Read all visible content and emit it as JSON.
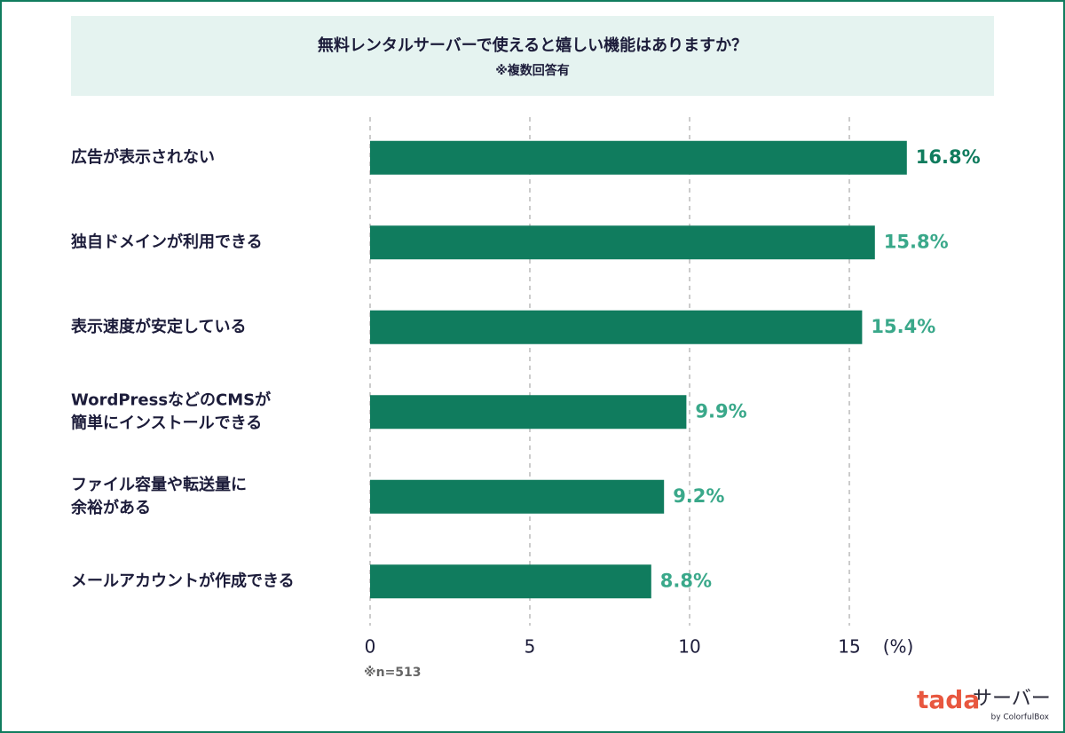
{
  "chart_data": {
    "type": "barh",
    "title": "無料レンタルサーバーで使えると嬉しい機能はありますか？",
    "subtitle": "※複数回答有",
    "categories": [
      "広告が表示されない",
      "独自ドメインが利用できる",
      "表示速度が安定している",
      "WordPressなどのCMSが\n簡単にインストールできる",
      "ファイル容量や転送量に\n余裕がある",
      "メールアカウントが作成できる"
    ],
    "values": [
      16.8,
      15.8,
      15.4,
      9.9,
      9.2,
      8.8
    ],
    "value_labels": [
      "16.8%",
      "15.8%",
      "15.4%",
      "9.9%",
      "9.2%",
      "8.8%"
    ],
    "value_label_colors": [
      "#107c5e",
      "#3aa88a",
      "#3aa88a",
      "#3aa88a",
      "#3aa88a",
      "#3aa88a"
    ],
    "color": "#107c5e",
    "xlim": [
      0,
      18
    ],
    "xticks": [
      0,
      5,
      10,
      15
    ],
    "x_label": "(%)",
    "grid": true,
    "note": "※n=513",
    "brand": {
      "name_a": "tada",
      "name_b": "サーバー",
      "by": "by ColorfulBox"
    }
  }
}
